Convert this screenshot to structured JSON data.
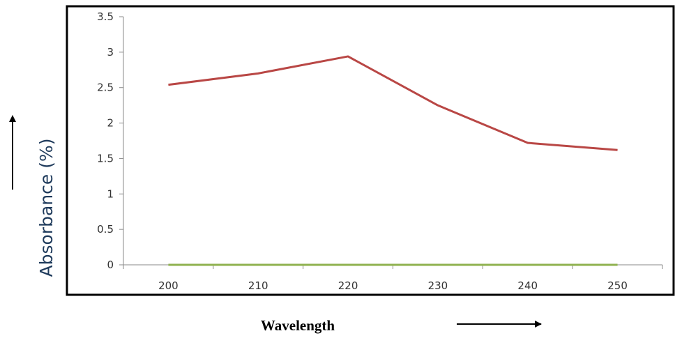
{
  "chart_data": {
    "type": "line",
    "xlabel": "Wavelength",
    "ylabel": "Absorbance (%)",
    "categories": [
      "200",
      "210",
      "220",
      "230",
      "240",
      "250"
    ],
    "ylim": [
      0,
      3.5
    ],
    "yticks": [
      "0",
      "0.5",
      "1",
      "1.5",
      "2",
      "2.5",
      "3",
      "3.5"
    ],
    "grid": false,
    "series": [
      {
        "values": [
          2.54,
          2.7,
          2.94,
          2.25,
          1.72,
          1.62
        ],
        "color": "#b94745"
      },
      {
        "values": [
          0,
          0,
          0,
          0,
          0,
          0
        ],
        "color": "#8fb24f"
      }
    ]
  }
}
